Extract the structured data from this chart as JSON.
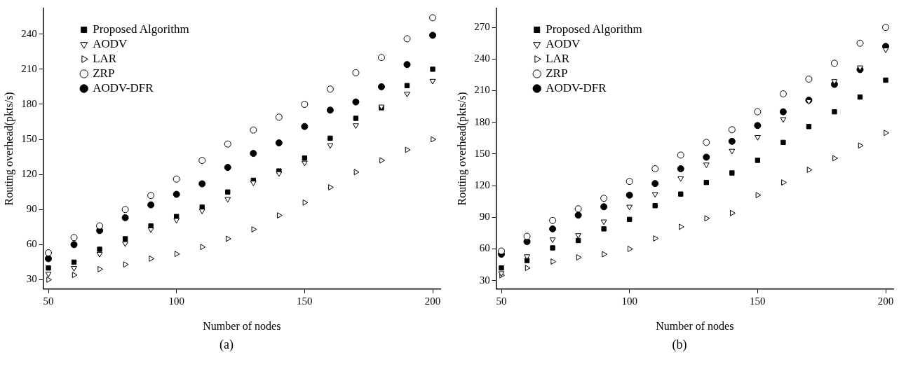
{
  "chart_data": [
    {
      "type": "scatter",
      "xlabel": "Number of nodes",
      "ylabel": "Routing overhead(pkts/s)",
      "annotations": [
        "(a)"
      ],
      "x": [
        50,
        60,
        70,
        80,
        90,
        100,
        110,
        120,
        130,
        140,
        150,
        160,
        170,
        180,
        190,
        200
      ],
      "xlim": [
        48,
        203
      ],
      "xticks": [
        50,
        100,
        150,
        200
      ],
      "ylim": [
        22,
        262
      ],
      "yticks": [
        30,
        60,
        90,
        120,
        150,
        180,
        210,
        240
      ],
      "grid": false,
      "legend": "top left",
      "series": [
        {
          "name": "Proposed Algorithm",
          "color": "#000000",
          "marker": "square",
          "values": [
            40,
            45,
            56,
            65,
            76,
            84,
            92,
            105,
            115,
            123,
            134,
            151,
            168,
            177,
            196,
            210
          ]
        },
        {
          "name": "AODV",
          "color": "#000000",
          "marker": "triangle",
          "values": [
            35,
            40,
            52,
            61,
            73,
            81,
            89,
            99,
            113,
            121,
            130,
            145,
            162,
            178,
            189,
            200
          ]
        },
        {
          "name": "LAR",
          "color": "#000000",
          "marker": "triangle",
          "values": [
            30,
            34,
            39,
            43,
            48,
            52,
            58,
            65,
            73,
            85,
            96,
            109,
            122,
            132,
            141,
            150
          ]
        },
        {
          "name": "ZRP",
          "color": "#000000",
          "marker": "circle",
          "values": [
            53,
            66,
            76,
            90,
            102,
            116,
            132,
            146,
            158,
            169,
            180,
            193,
            207,
            220,
            236,
            254
          ]
        },
        {
          "name": "AODV-DFR",
          "color": "#000000",
          "marker": "circle",
          "values": [
            48,
            60,
            72,
            83,
            94,
            103,
            112,
            126,
            138,
            147,
            161,
            175,
            182,
            195,
            214,
            239
          ]
        }
      ]
    },
    {
      "type": "scatter",
      "xlabel": "Number of nodes",
      "ylabel": "Routing overhead(pkts/s)",
      "annotations": [
        "(b)"
      ],
      "x": [
        50,
        60,
        70,
        80,
        90,
        100,
        110,
        120,
        130,
        140,
        150,
        160,
        170,
        180,
        190,
        200
      ],
      "xlim": [
        48,
        203
      ],
      "xticks": [
        50,
        100,
        150,
        200
      ],
      "ylim": [
        22,
        288
      ],
      "yticks": [
        30,
        60,
        90,
        120,
        150,
        180,
        210,
        240,
        270
      ],
      "grid": false,
      "legend": "top left",
      "series": [
        {
          "name": "Proposed Algorithm",
          "color": "#000000",
          "marker": "square",
          "values": [
            42,
            49,
            61,
            68,
            79,
            88,
            101,
            112,
            123,
            132,
            144,
            161,
            176,
            190,
            204,
            220
          ]
        },
        {
          "name": "AODV",
          "color": "#000000",
          "marker": "triangle",
          "values": [
            37,
            53,
            69,
            73,
            86,
            100,
            112,
            127,
            140,
            153,
            166,
            183,
            200,
            219,
            232,
            249
          ]
        },
        {
          "name": "LAR",
          "color": "#000000",
          "marker": "triangle",
          "values": [
            35,
            42,
            48,
            52,
            55,
            60,
            70,
            81,
            89,
            94,
            111,
            123,
            135,
            146,
            158,
            170
          ]
        },
        {
          "name": "ZRP",
          "color": "#000000",
          "marker": "circle",
          "values": [
            58,
            72,
            87,
            98,
            108,
            124,
            136,
            149,
            161,
            173,
            190,
            207,
            221,
            236,
            255,
            270
          ]
        },
        {
          "name": "AODV-DFR",
          "color": "#000000",
          "marker": "circle",
          "values": [
            55,
            67,
            79,
            92,
            100,
            111,
            122,
            136,
            147,
            162,
            177,
            190,
            201,
            216,
            230,
            252
          ]
        }
      ]
    }
  ]
}
